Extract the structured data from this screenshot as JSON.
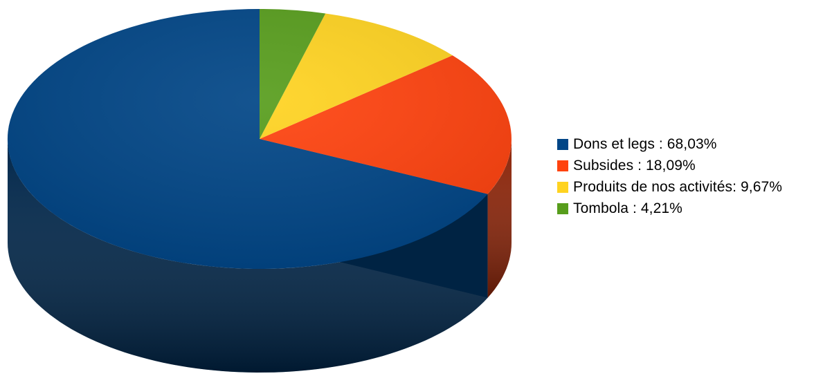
{
  "chart_data": {
    "type": "pie",
    "style": "3d",
    "title": "",
    "legend_position": "right",
    "categories": [
      "Dons et legs",
      "Subsides",
      "Produits de nos activités",
      "Tombola"
    ],
    "values": [
      68.03,
      18.09,
      9.67,
      4.21
    ],
    "colors": [
      "#004586",
      "#ff420e",
      "#ffd320",
      "#579d1c"
    ]
  },
  "legend": {
    "items": [
      {
        "label": "Dons et legs : 68,03%",
        "color": "#004586"
      },
      {
        "label": "Subsides : 18,09%",
        "color": "#ff420e"
      },
      {
        "label": "Produits de nos activités: 9,67%",
        "color": "#ffd320"
      },
      {
        "label": "Tombola : 4,21%",
        "color": "#579d1c"
      }
    ]
  }
}
